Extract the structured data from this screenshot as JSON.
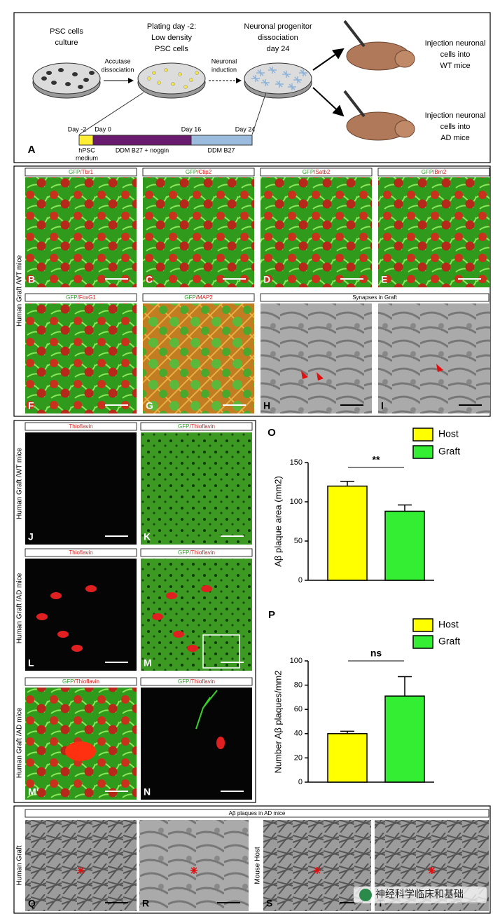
{
  "schematic": {
    "label": "A",
    "stage1": [
      "PSC cells",
      "culture"
    ],
    "stage2": [
      "Plating day -2:",
      "Low density",
      "PSC cells"
    ],
    "stage3": [
      "Neuronal progenitor",
      "dissociation",
      "day 24"
    ],
    "arrow1": [
      "Accutase",
      "dissociation"
    ],
    "arrow2": [
      "Neuronal",
      "induction"
    ],
    "injection_wt": [
      "Injection neuronal",
      "cells into",
      "WT mice"
    ],
    "injection_ad": [
      "Injection neuronal",
      "cells into",
      "AD mice"
    ],
    "timeline_days": [
      "Day -2",
      "Day 0",
      "Day 16",
      "Day 24"
    ],
    "timeline_media": [
      "hPSC",
      "medium"
    ],
    "ddm_noggin": "DDM B27 + noggin",
    "ddm": "DDM B27"
  },
  "markers": {
    "side_label": "Human Graft /WT mice",
    "em_header": "Synapses in Graft",
    "panels": [
      {
        "label": "B",
        "green": "GFP",
        "red": "/Tbr1"
      },
      {
        "label": "C",
        "green": "GFP",
        "red": "/Ctip2"
      },
      {
        "label": "D",
        "green": "GFP",
        "red": "/Satb2"
      },
      {
        "label": "E",
        "green": "GFP",
        "red": "/Brn2"
      },
      {
        "label": "F",
        "green": "GFP",
        "red": "/FoxG1"
      },
      {
        "label": "G",
        "green": "GFP",
        "red": "/MAP2"
      },
      {
        "label": "H"
      },
      {
        "label": "I"
      }
    ]
  },
  "thioflavin": {
    "side_labels": [
      "Human Graft /WT mice",
      "Human Graft /AD mice",
      "Human Graft /AD mice"
    ],
    "panels": [
      {
        "label": "J",
        "red": "Thioflavin"
      },
      {
        "label": "K",
        "green": "GFP",
        "red": "/Thioflavin"
      },
      {
        "label": "L",
        "red": "Thioflavin"
      },
      {
        "label": "M",
        "green": "GFP",
        "red": "/Thioflavin"
      },
      {
        "label": "M’",
        "green": "GFP",
        "red": "/Thioflavin"
      },
      {
        "label": "N",
        "green": "GFP",
        "red": "/Thioflavin"
      }
    ]
  },
  "chart_data": [
    {
      "type": "bar",
      "panel_label": "O",
      "ylabel": "Aβ plaque area (mm2)",
      "annotation": "**",
      "ylim": [
        0,
        150
      ],
      "yticks": [
        0,
        50,
        100,
        150
      ],
      "series": [
        {
          "name": "Host",
          "color": "#ffff00",
          "values": [
            120
          ],
          "errors": [
            6
          ]
        },
        {
          "name": "Graft",
          "color": "#33ee33",
          "values": [
            88
          ],
          "errors": [
            8
          ]
        }
      ]
    },
    {
      "type": "bar",
      "panel_label": "P",
      "ylabel": "Number Aβ plaques/mm2",
      "annotation": "ns",
      "ylim": [
        0,
        100
      ],
      "yticks": [
        0,
        20,
        40,
        60,
        80,
        100
      ],
      "series": [
        {
          "name": "Host",
          "color": "#ffff00",
          "values": [
            40
          ],
          "errors": [
            2
          ]
        },
        {
          "name": "Graft",
          "color": "#33ee33",
          "values": [
            71
          ],
          "errors": [
            16
          ]
        }
      ]
    }
  ],
  "plaques": {
    "header": "Aβ plaques in AD mice",
    "side_labels": [
      "Human Graft",
      "Mouse Host"
    ],
    "labels": [
      "Q",
      "R",
      "S",
      "T"
    ],
    "watermark": "神经科学临床和基础"
  }
}
